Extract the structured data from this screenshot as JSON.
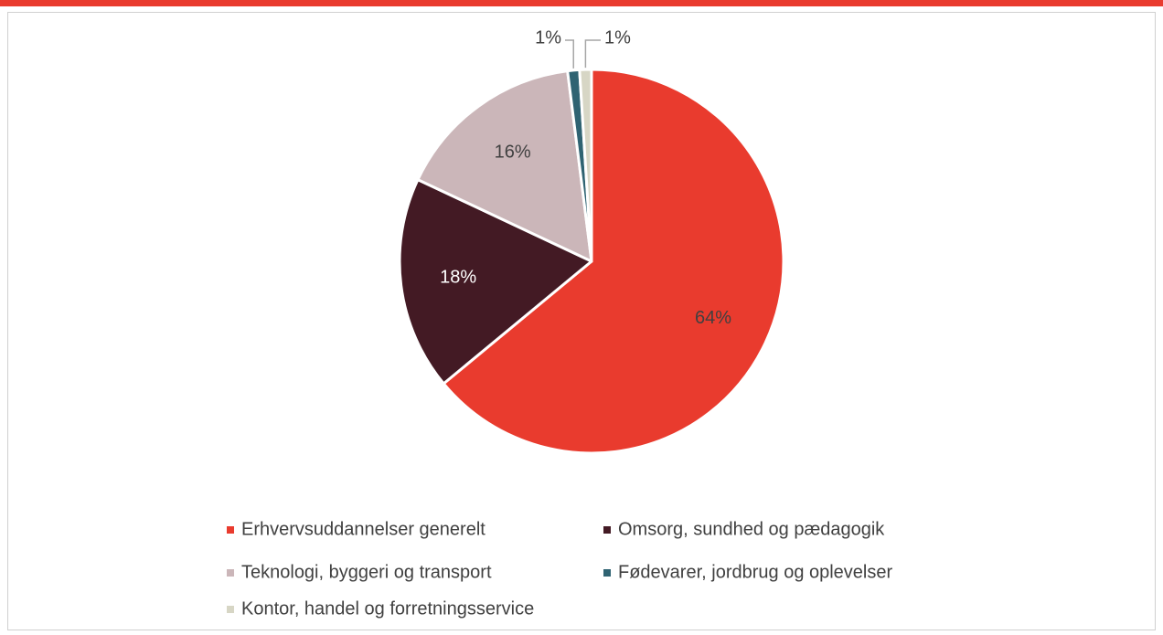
{
  "chart_data": {
    "type": "pie",
    "categories": [
      "Erhvervsuddannelser generelt",
      "Omsorg, sundhed og pædagogik",
      "Teknologi, byggeri og transport",
      "Fødevarer, jordbrug og oplevelser",
      "Kontor, handel og forretningsservice"
    ],
    "values": [
      64,
      18,
      16,
      1,
      1
    ],
    "value_labels": [
      "64%",
      "18%",
      "16%",
      "1%",
      "1%"
    ],
    "colors": [
      "#e93b2e",
      "#431a24",
      "#cbb6b9",
      "#2f6372",
      "#d7d6c5"
    ],
    "legend": "bottom"
  }
}
